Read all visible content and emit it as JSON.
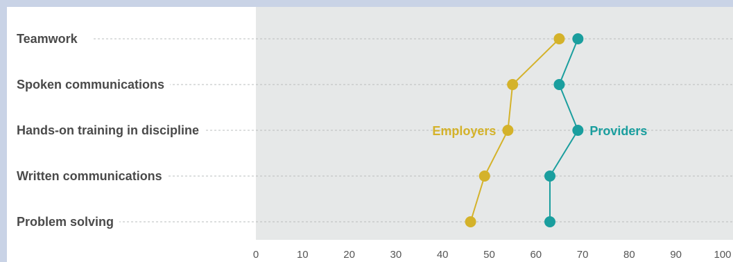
{
  "chart_data": {
    "type": "dot-plot",
    "categories": [
      "Teamwork",
      "Spoken communications",
      "Hands-on training in discipline",
      "Written communications",
      "Problem solving"
    ],
    "series": [
      {
        "name": "Employers",
        "values": [
          65,
          55,
          54,
          49,
          46
        ],
        "color": "#d4b22a"
      },
      {
        "name": "Providers",
        "values": [
          69,
          65,
          69,
          63,
          63
        ],
        "color": "#1a9e9e"
      }
    ],
    "xlim": [
      0,
      100
    ],
    "xticks": [
      "0",
      "10",
      "20",
      "30",
      "40",
      "50",
      "60",
      "70",
      "80",
      "90",
      "100"
    ],
    "grid": "dotted horizontal",
    "plot_background": "#e6e8e8"
  }
}
